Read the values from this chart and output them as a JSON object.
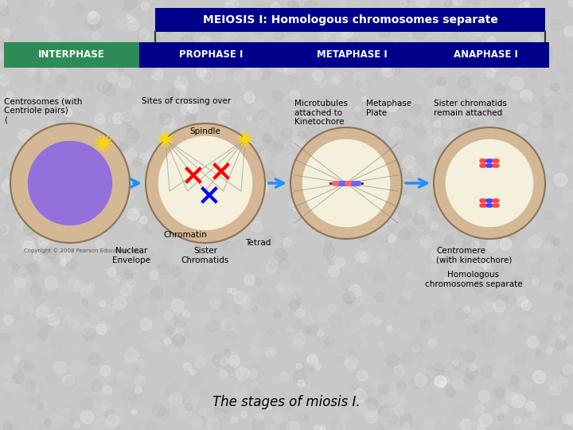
{
  "title": "MEIOSIS I: Homologous chromosomes separate",
  "title_bg": "#00008B",
  "title_text_color": "#FFFFFF",
  "phases": [
    "INTERPHASE",
    "PROPHASE I",
    "METAPHASE I",
    "ANAPHASE I"
  ],
  "phase_colors": [
    "#2E8B57",
    "#00008B",
    "#00008B",
    "#00008B"
  ],
  "phase_text_color": "#FFFFFF",
  "bg_color": "#C8C8C8",
  "bottom_text": "The stages of miosis I.",
  "labels_interphase": [
    "Centrosomes (with",
    "Centriole pairs)",
    "("
  ],
  "labels_prophase": [
    "Sites of crossing over"
  ],
  "labels_spindle": [
    "Spindle"
  ],
  "labels_nuclear": [
    "Nuclear",
    "Envelope"
  ],
  "labels_chromatin": [
    "Chromatin"
  ],
  "labels_sister": [
    "Sister",
    "Chromatids"
  ],
  "labels_tetrad": [
    "Tetrad"
  ],
  "labels_metaphase": [
    "Microtubules",
    "attached to",
    "Kinetochore"
  ],
  "labels_mplate": [
    "Metaphase",
    "Plate"
  ],
  "labels_anaphase": [
    "Sister chromatids",
    "remain attached"
  ],
  "labels_centromere": [
    "Centromere",
    "(with kinetochore)"
  ],
  "labels_homologous": [
    "Homologous",
    "chromosomes separate"
  ],
  "outline_color": "#333333",
  "arrow_color": "#1E90FF",
  "label_color": "#000000"
}
